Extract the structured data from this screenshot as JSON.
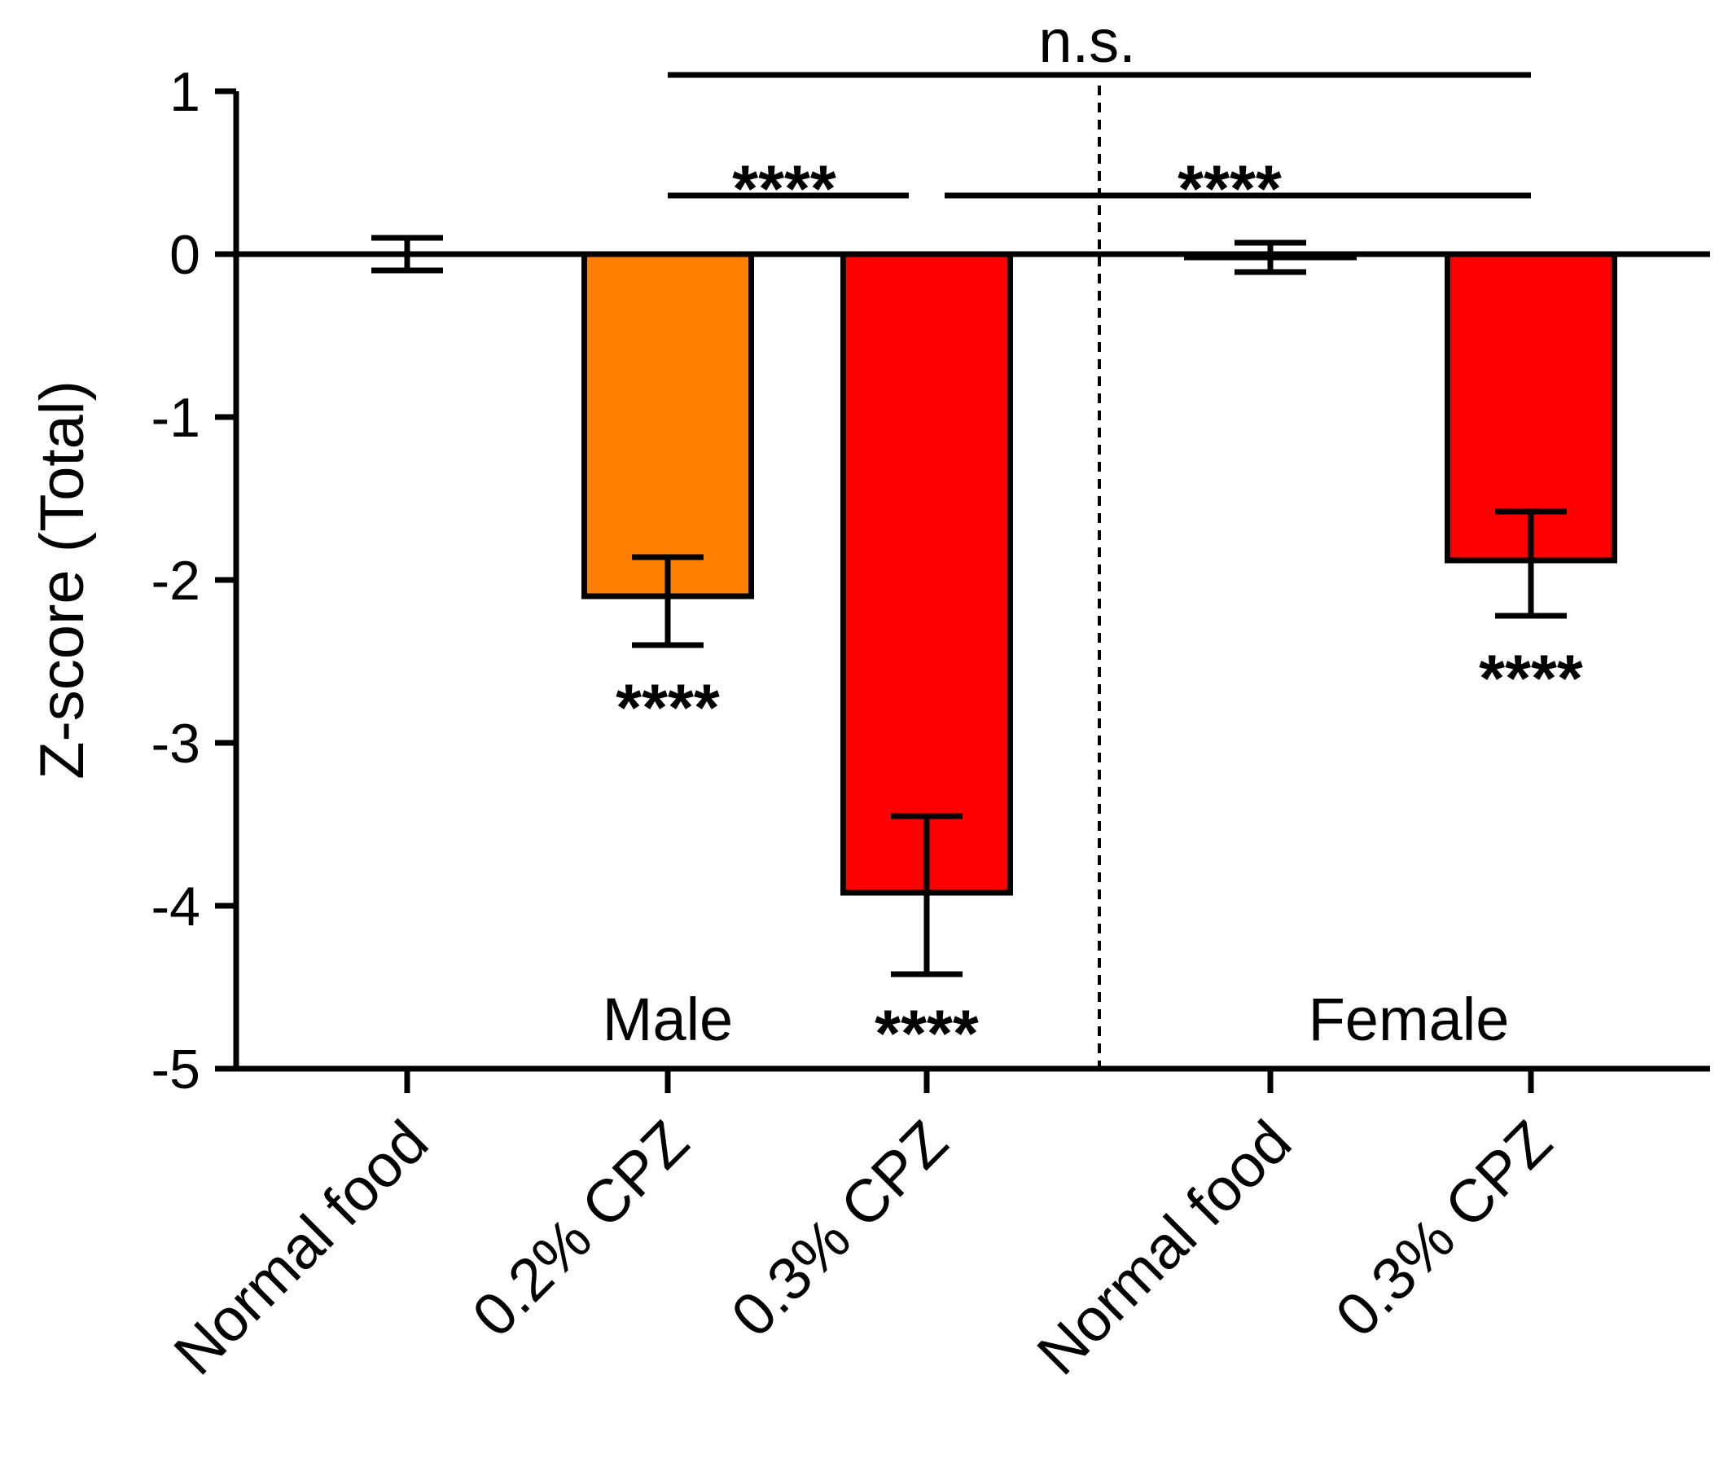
{
  "chart_data": {
    "type": "bar",
    "title": "",
    "xlabel": "",
    "ylabel": "Z-score (Total)",
    "ylim": [
      -5,
      1
    ],
    "yticks": [
      1,
      0,
      -1,
      -2,
      -3,
      -4,
      -5
    ],
    "ytick_labels": [
      "1",
      "0",
      "-1",
      "-2",
      "-3",
      "-4",
      "-5"
    ],
    "categories": [
      "Normal food",
      "0.2% CPZ",
      "0.3% CPZ",
      "Normal food",
      "0.3% CPZ"
    ],
    "values": [
      0.0,
      -2.1,
      -3.92,
      -0.02,
      -1.88
    ],
    "error_upper": [
      0.1,
      -1.86,
      -3.45,
      0.07,
      -1.58
    ],
    "error_lower": [
      -0.1,
      -2.4,
      -4.42,
      -0.11,
      -2.22
    ],
    "colors": [
      "#ffffff",
      "#ff8000",
      "#ff0000",
      "#ffffff",
      "#ff0000"
    ],
    "groups": [
      {
        "name": "Male",
        "categories": [
          0,
          1,
          2
        ]
      },
      {
        "name": "Female",
        "categories": [
          3,
          4
        ]
      }
    ],
    "bar_annotations": [
      {
        "category": 1,
        "text": "****"
      },
      {
        "category": 2,
        "text": "****"
      },
      {
        "category": 4,
        "text": "****"
      }
    ],
    "comparisons": [
      {
        "from": 1,
        "to": 4,
        "label": "n.s.",
        "y": 1.1
      },
      {
        "from": 1,
        "to": 2,
        "label": "****",
        "y": 0.36
      },
      {
        "from": 2,
        "to": 4,
        "label": "****",
        "y": 0.36
      }
    ]
  }
}
